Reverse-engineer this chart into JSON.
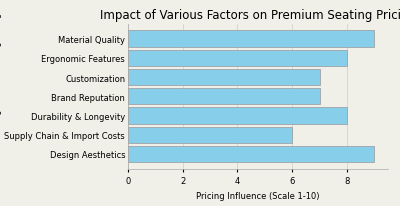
{
  "title": "Impact of Various Factors on Premium Seating Pricing",
  "categories": [
    "Design Aesthetics",
    "Supply Chain & Import Costs",
    "Durability & Longevity",
    "Brand Reputation",
    "Customization",
    "Ergonomic Features",
    "Material Quality"
  ],
  "values": [
    9,
    6,
    8,
    7,
    7,
    8,
    9
  ],
  "bar_color": "#87CEEB",
  "bar_edgecolor": "#999999",
  "xlabel": "Pricing Influence (Scale 1-10)",
  "ylabel": "Factors Influencing Premium Seating Pricing",
  "xlim": [
    0,
    9.5
  ],
  "xticks": [
    0,
    2,
    4,
    6,
    8
  ],
  "title_fontsize": 8.5,
  "label_fontsize": 6,
  "tick_fontsize": 6,
  "background_color": "#f0f0e8",
  "grid_color": "#cccccc"
}
